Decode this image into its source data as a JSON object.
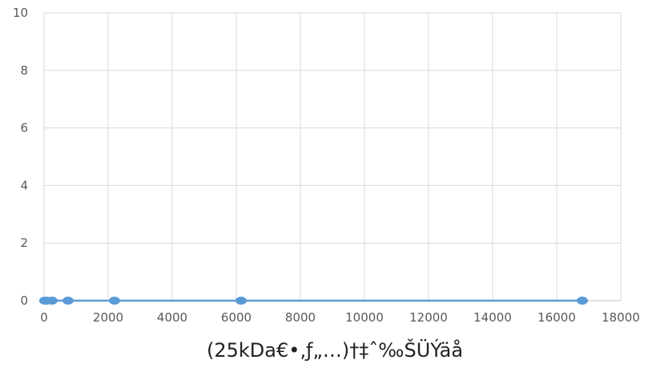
{
  "chart_data": {
    "type": "scatter",
    "title": "",
    "xlabel": "(25kDa€•‚ƒ„…)†‡ˆ‰ŠÜÝäå",
    "ylabel": "",
    "xlim": [
      0,
      18000
    ],
    "ylim": [
      0,
      10
    ],
    "x_ticks": [
      "0",
      "2000",
      "4000",
      "6000",
      "8000",
      "10000",
      "12000",
      "14000",
      "16000",
      "18000"
    ],
    "y_ticks": [
      "0",
      "2",
      "4",
      "6",
      "8",
      "10"
    ],
    "grid": true,
    "legend": "none",
    "colors": {
      "series": "#5b9bd5",
      "grid": "#d9d9d9"
    },
    "series": [
      {
        "x": [
          20,
          80,
          250,
          750,
          2200,
          6150,
          16800
        ],
        "y": [
          0,
          0,
          0,
          0,
          0,
          0,
          0
        ]
      }
    ]
  }
}
